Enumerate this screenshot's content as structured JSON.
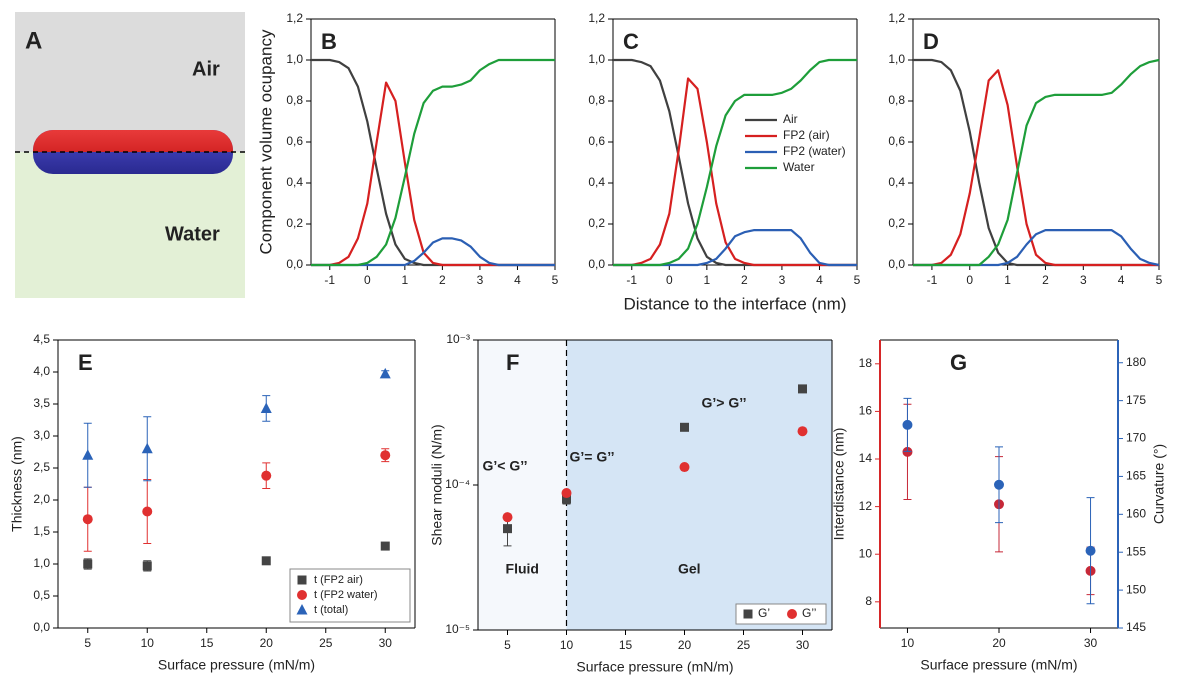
{
  "panel_a": {
    "label": "A",
    "top": "Air",
    "bottom": "Water"
  },
  "chart_data": [
    {
      "type": "line",
      "label": "B",
      "ylabel": "Component volume ocupancy",
      "x": [
        -1.5,
        -1.25,
        -1,
        -0.75,
        -0.5,
        -0.25,
        0,
        0.25,
        0.5,
        0.75,
        1,
        1.25,
        1.5,
        1.75,
        2,
        2.25,
        2.5,
        2.75,
        3,
        3.25,
        3.5,
        3.75,
        4,
        4.25,
        4.5,
        4.75,
        5
      ],
      "xlim": [
        -1.5,
        5
      ],
      "xticks": [
        -1,
        0,
        1,
        2,
        3,
        4,
        5
      ],
      "ylim": [
        0,
        1.2
      ],
      "yticks": [
        {
          "value": 0,
          "label": "0,0"
        },
        {
          "value": 0.2,
          "label": "0,2"
        },
        {
          "value": 0.4,
          "label": "0,4"
        },
        {
          "value": 0.6,
          "label": "0,6"
        },
        {
          "value": 0.8,
          "label": "0,8"
        },
        {
          "value": 1,
          "label": "1,0"
        },
        {
          "value": 1.2,
          "label": "1,2"
        }
      ],
      "series": [
        {
          "name": "Air",
          "color": "#404040",
          "values": [
            1,
            1,
            1,
            0.99,
            0.96,
            0.87,
            0.7,
            0.47,
            0.25,
            0.1,
            0.03,
            0.01,
            0,
            0,
            0,
            0,
            0,
            0,
            0,
            0,
            0,
            0,
            0,
            0,
            0,
            0,
            0
          ]
        },
        {
          "name": "FP2 (air)",
          "color": "#d62020",
          "values": [
            0,
            0,
            0,
            0.01,
            0.04,
            0.13,
            0.3,
            0.6,
            0.89,
            0.8,
            0.5,
            0.22,
            0.06,
            0.01,
            0,
            0,
            0,
            0,
            0,
            0,
            0,
            0,
            0,
            0,
            0,
            0,
            0
          ]
        },
        {
          "name": "FP2 (water)",
          "color": "#2b5fb4",
          "values": [
            0,
            0,
            0,
            0,
            0,
            0,
            0,
            0,
            0,
            0,
            0,
            0.02,
            0.06,
            0.11,
            0.13,
            0.13,
            0.12,
            0.09,
            0.04,
            0.01,
            0,
            0,
            0,
            0,
            0,
            0,
            0
          ]
        },
        {
          "name": "Water",
          "color": "#1e9e3a",
          "values": [
            0,
            0,
            0,
            0,
            0,
            0,
            0.01,
            0.04,
            0.1,
            0.23,
            0.43,
            0.64,
            0.79,
            0.85,
            0.87,
            0.87,
            0.88,
            0.9,
            0.95,
            0.98,
            1,
            1,
            1,
            1,
            1,
            1,
            1
          ]
        }
      ]
    },
    {
      "type": "line",
      "label": "C",
      "xlabel": "Distance to the interface (nm)",
      "legend": "right",
      "x": [
        -1.5,
        -1.25,
        -1,
        -0.75,
        -0.5,
        -0.25,
        0,
        0.25,
        0.5,
        0.75,
        1,
        1.25,
        1.5,
        1.75,
        2,
        2.25,
        2.5,
        2.75,
        3,
        3.25,
        3.5,
        3.75,
        4,
        4.25,
        4.5,
        4.75,
        5
      ],
      "xlim": [
        -1.5,
        5
      ],
      "xticks": [
        -1,
        0,
        1,
        2,
        3,
        4,
        5
      ],
      "ylim": [
        0,
        1.2
      ],
      "yticks": [
        {
          "value": 0,
          "label": "0,0"
        },
        {
          "value": 0.2,
          "label": "0,2"
        },
        {
          "value": 0.4,
          "label": "0,4"
        },
        {
          "value": 0.6,
          "label": "0,6"
        },
        {
          "value": 0.8,
          "label": "0,8"
        },
        {
          "value": 1,
          "label": "1,0"
        },
        {
          "value": 1.2,
          "label": "1,2"
        }
      ],
      "series": [
        {
          "name": "Air",
          "color": "#404040",
          "values": [
            1,
            1,
            1,
            0.99,
            0.97,
            0.9,
            0.75,
            0.53,
            0.3,
            0.13,
            0.04,
            0.01,
            0,
            0,
            0,
            0,
            0,
            0,
            0,
            0,
            0,
            0,
            0,
            0,
            0,
            0,
            0
          ]
        },
        {
          "name": "FP2 (air)",
          "color": "#d62020",
          "values": [
            0,
            0,
            0,
            0.01,
            0.03,
            0.1,
            0.25,
            0.56,
            0.91,
            0.86,
            0.6,
            0.3,
            0.11,
            0.03,
            0.01,
            0,
            0,
            0,
            0,
            0,
            0,
            0,
            0,
            0,
            0,
            0,
            0
          ]
        },
        {
          "name": "FP2 (water)",
          "color": "#2b5fb4",
          "values": [
            0,
            0,
            0,
            0,
            0,
            0,
            0,
            0,
            0,
            0,
            0.01,
            0.03,
            0.08,
            0.14,
            0.16,
            0.17,
            0.17,
            0.17,
            0.17,
            0.17,
            0.13,
            0.06,
            0.01,
            0,
            0,
            0,
            0
          ]
        },
        {
          "name": "Water",
          "color": "#1e9e3a",
          "values": [
            0,
            0,
            0,
            0,
            0,
            0,
            0.01,
            0.03,
            0.08,
            0.2,
            0.38,
            0.58,
            0.73,
            0.8,
            0.83,
            0.83,
            0.83,
            0.83,
            0.84,
            0.86,
            0.9,
            0.95,
            0.99,
            1,
            1,
            1,
            1
          ]
        }
      ]
    },
    {
      "type": "line",
      "label": "D",
      "x": [
        -1.5,
        -1.25,
        -1,
        -0.75,
        -0.5,
        -0.25,
        0,
        0.25,
        0.5,
        0.75,
        1,
        1.25,
        1.5,
        1.75,
        2,
        2.25,
        2.5,
        2.75,
        3,
        3.25,
        3.5,
        3.75,
        4,
        4.25,
        4.5,
        4.75,
        5
      ],
      "xlim": [
        -1.5,
        5
      ],
      "xticks": [
        -1,
        0,
        1,
        2,
        3,
        4,
        5
      ],
      "ylim": [
        0,
        1.2
      ],
      "yticks": [
        {
          "value": 0,
          "label": "0,0"
        },
        {
          "value": 0.2,
          "label": "0,2"
        },
        {
          "value": 0.4,
          "label": "0,4"
        },
        {
          "value": 0.6,
          "label": "0,6"
        },
        {
          "value": 0.8,
          "label": "0,8"
        },
        {
          "value": 1,
          "label": "1,0"
        },
        {
          "value": 1.2,
          "label": "1,2"
        }
      ],
      "series": [
        {
          "name": "Air",
          "color": "#404040",
          "values": [
            1,
            1,
            1,
            0.99,
            0.95,
            0.85,
            0.65,
            0.4,
            0.18,
            0.06,
            0.01,
            0,
            0,
            0,
            0,
            0,
            0,
            0,
            0,
            0,
            0,
            0,
            0,
            0,
            0,
            0,
            0
          ]
        },
        {
          "name": "FP2 (air)",
          "color": "#d62020",
          "values": [
            0,
            0,
            0,
            0.01,
            0.05,
            0.15,
            0.35,
            0.62,
            0.9,
            0.95,
            0.78,
            0.48,
            0.2,
            0.05,
            0.01,
            0,
            0,
            0,
            0,
            0,
            0,
            0,
            0,
            0,
            0,
            0,
            0
          ]
        },
        {
          "name": "FP2 (water)",
          "color": "#2b5fb4",
          "values": [
            0,
            0,
            0,
            0,
            0,
            0,
            0,
            0,
            0,
            0,
            0.01,
            0.04,
            0.1,
            0.15,
            0.17,
            0.17,
            0.17,
            0.17,
            0.17,
            0.17,
            0.17,
            0.17,
            0.14,
            0.08,
            0.03,
            0.01,
            0
          ]
        },
        {
          "name": "Water",
          "color": "#1e9e3a",
          "values": [
            0,
            0,
            0,
            0,
            0,
            0,
            0,
            0,
            0.04,
            0.1,
            0.22,
            0.45,
            0.68,
            0.79,
            0.82,
            0.83,
            0.83,
            0.83,
            0.83,
            0.83,
            0.83,
            0.84,
            0.88,
            0.93,
            0.97,
            0.99,
            1
          ]
        }
      ]
    },
    {
      "type": "scatter",
      "label": "E",
      "xlabel": "Surface pressure (mN/m)",
      "ylabel": "Thickness (nm)",
      "legend": "lower right",
      "x": [
        5,
        10,
        20,
        30
      ],
      "xlim": [
        2.5,
        32.5
      ],
      "xticks": [
        5,
        10,
        15,
        20,
        25,
        30
      ],
      "ylim": [
        0,
        4.5
      ],
      "yticks": [
        {
          "value": 0,
          "label": "0,0"
        },
        {
          "value": 0.5,
          "label": "0,5"
        },
        {
          "value": 1,
          "label": "1,0"
        },
        {
          "value": 1.5,
          "label": "1,5"
        },
        {
          "value": 2,
          "label": "2,0"
        },
        {
          "value": 2.5,
          "label": "2,5"
        },
        {
          "value": 3,
          "label": "3,0"
        },
        {
          "value": 3.5,
          "label": "3,5"
        },
        {
          "value": 4,
          "label": "4,0"
        },
        {
          "value": 4.5,
          "label": "4,5"
        }
      ],
      "series": [
        {
          "name": "t (FP2 air)",
          "marker": "square",
          "color": "#444444",
          "values": [
            1.0,
            0.97,
            1.05,
            1.28
          ],
          "errors": [
            0.08,
            0.08,
            0.05,
            0.03
          ]
        },
        {
          "name": "t (FP2 water)",
          "marker": "circle",
          "color": "#e03030",
          "values": [
            1.7,
            1.82,
            2.38,
            2.7
          ],
          "errors": [
            0.5,
            0.5,
            0.2,
            0.1
          ]
        },
        {
          "name": "t (total)",
          "marker": "triangle",
          "color": "#2b63b8",
          "values": [
            2.7,
            2.8,
            3.43,
            3.97
          ],
          "errors": [
            0.5,
            0.5,
            0.2,
            0.05
          ]
        }
      ]
    },
    {
      "type": "scatter",
      "label": "F",
      "xlabel": "Surface pressure (mN/m)",
      "ylabel": "Shear moduli (N/m)",
      "log_y": true,
      "legend": "lower right",
      "x": [
        5,
        10,
        20,
        30
      ],
      "xlim": [
        2.5,
        32.5
      ],
      "xticks": [
        5,
        10,
        15,
        20,
        25,
        30
      ],
      "ylim": [
        1e-05,
        0.001
      ],
      "yticks": [
        {
          "value": 1e-05,
          "label": "10⁻⁵"
        },
        {
          "value": 0.0001,
          "label": "10⁻⁴"
        },
        {
          "value": 0.001,
          "label": "10⁻³"
        }
      ],
      "boundary": 10,
      "regions": [
        "Fluid",
        "Gel"
      ],
      "annotations": [
        "G’< G’’",
        "G’= G’’",
        "G’> G’’"
      ],
      "series": [
        {
          "name": "G’",
          "marker": "square",
          "color": "#444444",
          "values": [
            5e-05,
            8e-05,
            0.00025,
            0.00046
          ],
          "errors": [
            1.2e-05,
            6e-06,
            null,
            null
          ]
        },
        {
          "name": "G’’",
          "marker": "circle",
          "color": "#e03030",
          "values": [
            6e-05,
            8.8e-05,
            0.000133,
            0.000235
          ]
        }
      ]
    },
    {
      "type": "scatter",
      "label": "G",
      "xlabel": "Surface pressure (mN/m)",
      "ylabel": "Interdistance (nm)",
      "y2label": "Curvature (°)",
      "y_axis_color": "#d62728",
      "y2_axis_color": "#2b63b8",
      "x": [
        10,
        20,
        30
      ],
      "xlim": [
        7,
        33
      ],
      "xticks": [
        10,
        20,
        30
      ],
      "ylim": [
        6.9,
        19
      ],
      "yticks": [
        8,
        10,
        12,
        14,
        16,
        18
      ],
      "y2lim": [
        145,
        183
      ],
      "y2ticks": [
        145,
        150,
        155,
        160,
        165,
        170,
        175,
        180
      ],
      "series": [
        {
          "name": "Interdistance",
          "axis": "y",
          "marker": "circle",
          "color": "#c62838",
          "values": [
            14.3,
            12.1,
            9.3
          ],
          "errors": [
            2,
            2,
            1
          ]
        },
        {
          "name": "Curvature",
          "axis": "y2",
          "marker": "circle",
          "color": "#2b63b8",
          "values": [
            171.8,
            163.9,
            155.2
          ],
          "errors": [
            3.5,
            5,
            7
          ]
        }
      ]
    }
  ]
}
